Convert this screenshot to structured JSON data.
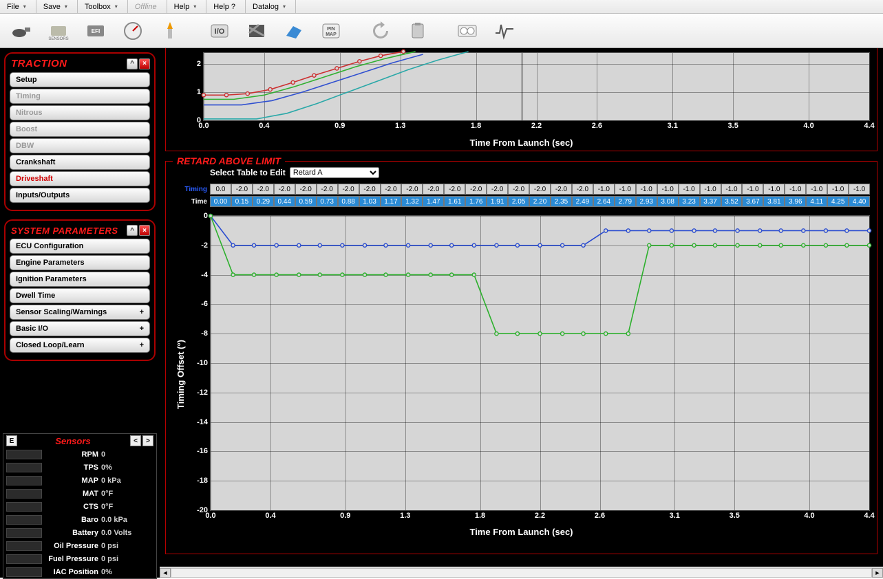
{
  "menu": {
    "items": [
      "File",
      "Save",
      "Toolbox",
      "Offline",
      "Help",
      "Help ?",
      "Datalog"
    ],
    "offline_index": 3
  },
  "toolbar_icons": [
    "plug",
    "sensors",
    "efi",
    "gauge",
    "sparkplug",
    "io",
    "hatch",
    "surface",
    "pinmap",
    "refresh",
    "clipboard",
    "dashgauges",
    "wave"
  ],
  "traction": {
    "title": "TRACTION",
    "items": [
      {
        "label": "Setup",
        "state": "normal"
      },
      {
        "label": "Timing",
        "state": "disabled"
      },
      {
        "label": "Nitrous",
        "state": "disabled"
      },
      {
        "label": "Boost",
        "state": "disabled"
      },
      {
        "label": "DBW",
        "state": "disabled"
      },
      {
        "label": "Crankshaft",
        "state": "normal"
      },
      {
        "label": "Driveshaft",
        "state": "active"
      },
      {
        "label": "Inputs/Outputs",
        "state": "normal"
      }
    ]
  },
  "system_parameters": {
    "title": "SYSTEM PARAMETERS",
    "items": [
      {
        "label": "ECU Configuration",
        "expand": ""
      },
      {
        "label": "Engine Parameters",
        "expand": ""
      },
      {
        "label": "Ignition Parameters",
        "expand": ""
      },
      {
        "label": "Dwell Time",
        "expand": ""
      },
      {
        "label": "Sensor Scaling/Warnings",
        "expand": "+"
      },
      {
        "label": "Basic I/O",
        "expand": "+"
      },
      {
        "label": "Closed Loop/Learn",
        "expand": "+"
      }
    ]
  },
  "sensors": {
    "title": "Sensors",
    "rows": [
      {
        "label": "RPM",
        "value": "0"
      },
      {
        "label": "TPS",
        "value": "0%"
      },
      {
        "label": "MAP",
        "value": "0 kPa"
      },
      {
        "label": "MAT",
        "value": "0°F"
      },
      {
        "label": "CTS",
        "value": "0°F"
      },
      {
        "label": "Baro",
        "value": "0.0 kPa"
      },
      {
        "label": "Battery",
        "value": "0.0 Volts"
      },
      {
        "label": "Oil Pressure",
        "value": "0 psi"
      },
      {
        "label": "Fuel Pressure",
        "value": "0 psi"
      },
      {
        "label": "IAC Position",
        "value": "0%"
      }
    ]
  },
  "upper_chart": {
    "x_label": "Time From Launch (sec)",
    "x_ticks": [
      "0.0",
      "0.4",
      "0.9",
      "1.3",
      "1.8",
      "2.2",
      "2.6",
      "3.1",
      "3.5",
      "4.0",
      "4.4"
    ],
    "y_ticks": [
      "0",
      "1",
      "2"
    ],
    "ylim": [
      0,
      2.4
    ],
    "xlim": [
      0,
      4.4
    ],
    "cursor_x": 2.1,
    "series": [
      {
        "color": "#cc3030",
        "marker": true,
        "data": [
          [
            0.0,
            0.9
          ],
          [
            0.15,
            0.9
          ],
          [
            0.29,
            0.95
          ],
          [
            0.44,
            1.1
          ],
          [
            0.59,
            1.35
          ],
          [
            0.73,
            1.6
          ],
          [
            0.88,
            1.85
          ],
          [
            1.03,
            2.1
          ],
          [
            1.17,
            2.3
          ],
          [
            1.32,
            2.45
          ]
        ]
      },
      {
        "color": "#30b030",
        "marker": false,
        "data": [
          [
            0.0,
            0.75
          ],
          [
            0.2,
            0.75
          ],
          [
            0.4,
            0.9
          ],
          [
            0.6,
            1.2
          ],
          [
            0.8,
            1.55
          ],
          [
            1.0,
            1.9
          ],
          [
            1.2,
            2.2
          ],
          [
            1.4,
            2.45
          ]
        ]
      },
      {
        "color": "#3050d0",
        "marker": false,
        "data": [
          [
            0.0,
            0.55
          ],
          [
            0.25,
            0.55
          ],
          [
            0.45,
            0.7
          ],
          [
            0.65,
            1.0
          ],
          [
            0.85,
            1.35
          ],
          [
            1.05,
            1.7
          ],
          [
            1.25,
            2.05
          ],
          [
            1.45,
            2.35
          ]
        ]
      },
      {
        "color": "#2aa8a8",
        "marker": false,
        "data": [
          [
            0.0,
            0.05
          ],
          [
            0.35,
            0.05
          ],
          [
            0.55,
            0.25
          ],
          [
            0.75,
            0.6
          ],
          [
            0.95,
            1.0
          ],
          [
            1.15,
            1.4
          ],
          [
            1.35,
            1.8
          ],
          [
            1.55,
            2.15
          ],
          [
            1.75,
            2.45
          ]
        ]
      }
    ]
  },
  "lower_chart": {
    "title": "RETARD ABOVE LIMIT",
    "select_label": "Select Table to Edit",
    "select_value": "Retard A",
    "timing_label": "Timing",
    "time_label": "Time",
    "timing_row": [
      "0.0",
      "-2.0",
      "-2.0",
      "-2.0",
      "-2.0",
      "-2.0",
      "-2.0",
      "-2.0",
      "-2.0",
      "-2.0",
      "-2.0",
      "-2.0",
      "-2.0",
      "-2.0",
      "-2.0",
      "-2.0",
      "-2.0",
      "-2.0",
      "-1.0",
      "-1.0",
      "-1.0",
      "-1.0",
      "-1.0",
      "-1.0",
      "-1.0",
      "-1.0",
      "-1.0",
      "-1.0",
      "-1.0",
      "-1.0",
      "-1.0"
    ],
    "time_row": [
      "0.00",
      "0.15",
      "0.29",
      "0.44",
      "0.59",
      "0.73",
      "0.88",
      "1.03",
      "1.17",
      "1.32",
      "1.47",
      "1.61",
      "1.76",
      "1.91",
      "2.05",
      "2.20",
      "2.35",
      "2.49",
      "2.64",
      "2.79",
      "2.93",
      "3.08",
      "3.23",
      "3.37",
      "3.52",
      "3.67",
      "3.81",
      "3.96",
      "4.11",
      "4.25",
      "4.40"
    ],
    "x_label": "Time From Launch (sec)",
    "y_label": "Timing Offset (°)",
    "x_ticks": [
      "0.0",
      "0.4",
      "0.9",
      "1.3",
      "1.8",
      "2.2",
      "2.6",
      "3.1",
      "3.5",
      "4.0",
      "4.4"
    ],
    "y_ticks": [
      "0",
      "-2",
      "-4",
      "-6",
      "-8",
      "-10",
      "-12",
      "-14",
      "-16",
      "-18",
      "-20"
    ],
    "ylim": [
      -20,
      0
    ],
    "xlim": [
      0,
      4.4
    ],
    "series": [
      {
        "color": "#2a4cd0",
        "marker": true,
        "data": [
          [
            0.0,
            0.0
          ],
          [
            0.15,
            -2.0
          ],
          [
            0.29,
            -2.0
          ],
          [
            0.44,
            -2.0
          ],
          [
            0.59,
            -2.0
          ],
          [
            0.73,
            -2.0
          ],
          [
            0.88,
            -2.0
          ],
          [
            1.03,
            -2.0
          ],
          [
            1.17,
            -2.0
          ],
          [
            1.32,
            -2.0
          ],
          [
            1.47,
            -2.0
          ],
          [
            1.61,
            -2.0
          ],
          [
            1.76,
            -2.0
          ],
          [
            1.91,
            -2.0
          ],
          [
            2.05,
            -2.0
          ],
          [
            2.2,
            -2.0
          ],
          [
            2.35,
            -2.0
          ],
          [
            2.49,
            -2.0
          ],
          [
            2.64,
            -1.0
          ],
          [
            2.79,
            -1.0
          ],
          [
            2.93,
            -1.0
          ],
          [
            3.08,
            -1.0
          ],
          [
            3.23,
            -1.0
          ],
          [
            3.37,
            -1.0
          ],
          [
            3.52,
            -1.0
          ],
          [
            3.67,
            -1.0
          ],
          [
            3.81,
            -1.0
          ],
          [
            3.96,
            -1.0
          ],
          [
            4.11,
            -1.0
          ],
          [
            4.25,
            -1.0
          ],
          [
            4.4,
            -1.0
          ]
        ]
      },
      {
        "color": "#2db02d",
        "marker": true,
        "data": [
          [
            0.0,
            0.0
          ],
          [
            0.15,
            -4.0
          ],
          [
            0.29,
            -4.0
          ],
          [
            0.44,
            -4.0
          ],
          [
            0.59,
            -4.0
          ],
          [
            0.73,
            -4.0
          ],
          [
            0.88,
            -4.0
          ],
          [
            1.03,
            -4.0
          ],
          [
            1.17,
            -4.0
          ],
          [
            1.32,
            -4.0
          ],
          [
            1.47,
            -4.0
          ],
          [
            1.61,
            -4.0
          ],
          [
            1.76,
            -4.0
          ],
          [
            1.91,
            -8.0
          ],
          [
            2.05,
            -8.0
          ],
          [
            2.2,
            -8.0
          ],
          [
            2.35,
            -8.0
          ],
          [
            2.49,
            -8.0
          ],
          [
            2.64,
            -8.0
          ],
          [
            2.79,
            -8.0
          ],
          [
            2.93,
            -2.0
          ],
          [
            3.08,
            -2.0
          ],
          [
            3.23,
            -2.0
          ],
          [
            3.37,
            -2.0
          ],
          [
            3.52,
            -2.0
          ],
          [
            3.67,
            -2.0
          ],
          [
            3.81,
            -2.0
          ],
          [
            3.96,
            -2.0
          ],
          [
            4.11,
            -2.0
          ],
          [
            4.25,
            -2.0
          ],
          [
            4.4,
            -2.0
          ]
        ]
      }
    ]
  },
  "colors": {
    "grid_bg": "#d6d6d6",
    "grid_line": "#8a8a8a"
  }
}
